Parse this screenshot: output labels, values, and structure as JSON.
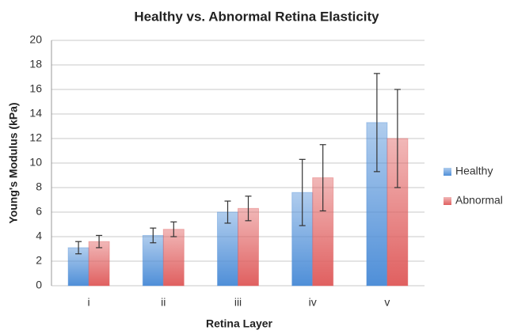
{
  "chart_data": {
    "type": "bar",
    "title": "Healthy vs. Abnormal Retina Elasticity",
    "x_label": "Retina Layer",
    "y_label": "Young's Modulus (kPa)",
    "categories": [
      "i",
      "ii",
      "iii",
      "iv",
      "v"
    ],
    "series": [
      {
        "name": "Healthy",
        "color": "#4f8fd8",
        "values": [
          3.1,
          4.1,
          6.0,
          7.6,
          13.3
        ],
        "errors": [
          0.5,
          0.6,
          0.9,
          2.7,
          4.0
        ]
      },
      {
        "name": "Abnormal",
        "color": "#e06060",
        "values": [
          3.6,
          4.6,
          6.3,
          8.8,
          12.0
        ],
        "errors": [
          0.5,
          0.6,
          1.0,
          2.7,
          4.0
        ]
      }
    ],
    "ylim": [
      0,
      20
    ],
    "yticks": [
      0,
      2,
      4,
      6,
      8,
      10,
      12,
      14,
      16,
      18,
      20
    ],
    "grid": true,
    "legend": "right"
  }
}
